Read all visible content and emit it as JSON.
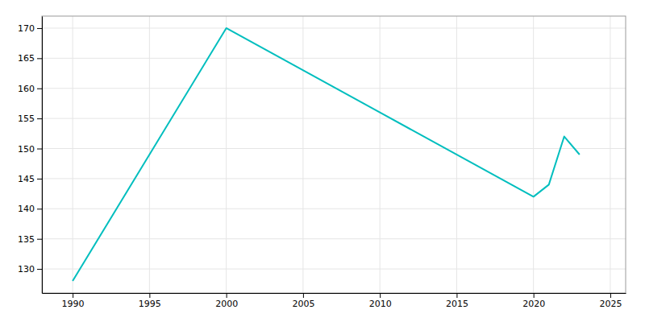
{
  "chart_data": {
    "type": "line",
    "x": [
      1990,
      2000,
      2010,
      2020,
      2021,
      2022,
      2023
    ],
    "values": [
      128,
      170,
      156,
      142,
      144,
      152,
      149
    ],
    "color": "#00BEBE",
    "xlim": [
      1988,
      2026
    ],
    "ylim": [
      126,
      172
    ],
    "xticks": [
      1990,
      1995,
      2000,
      2005,
      2010,
      2015,
      2020,
      2025
    ],
    "yticks": [
      130,
      135,
      140,
      145,
      150,
      155,
      160,
      165,
      170
    ],
    "grid": true
  }
}
